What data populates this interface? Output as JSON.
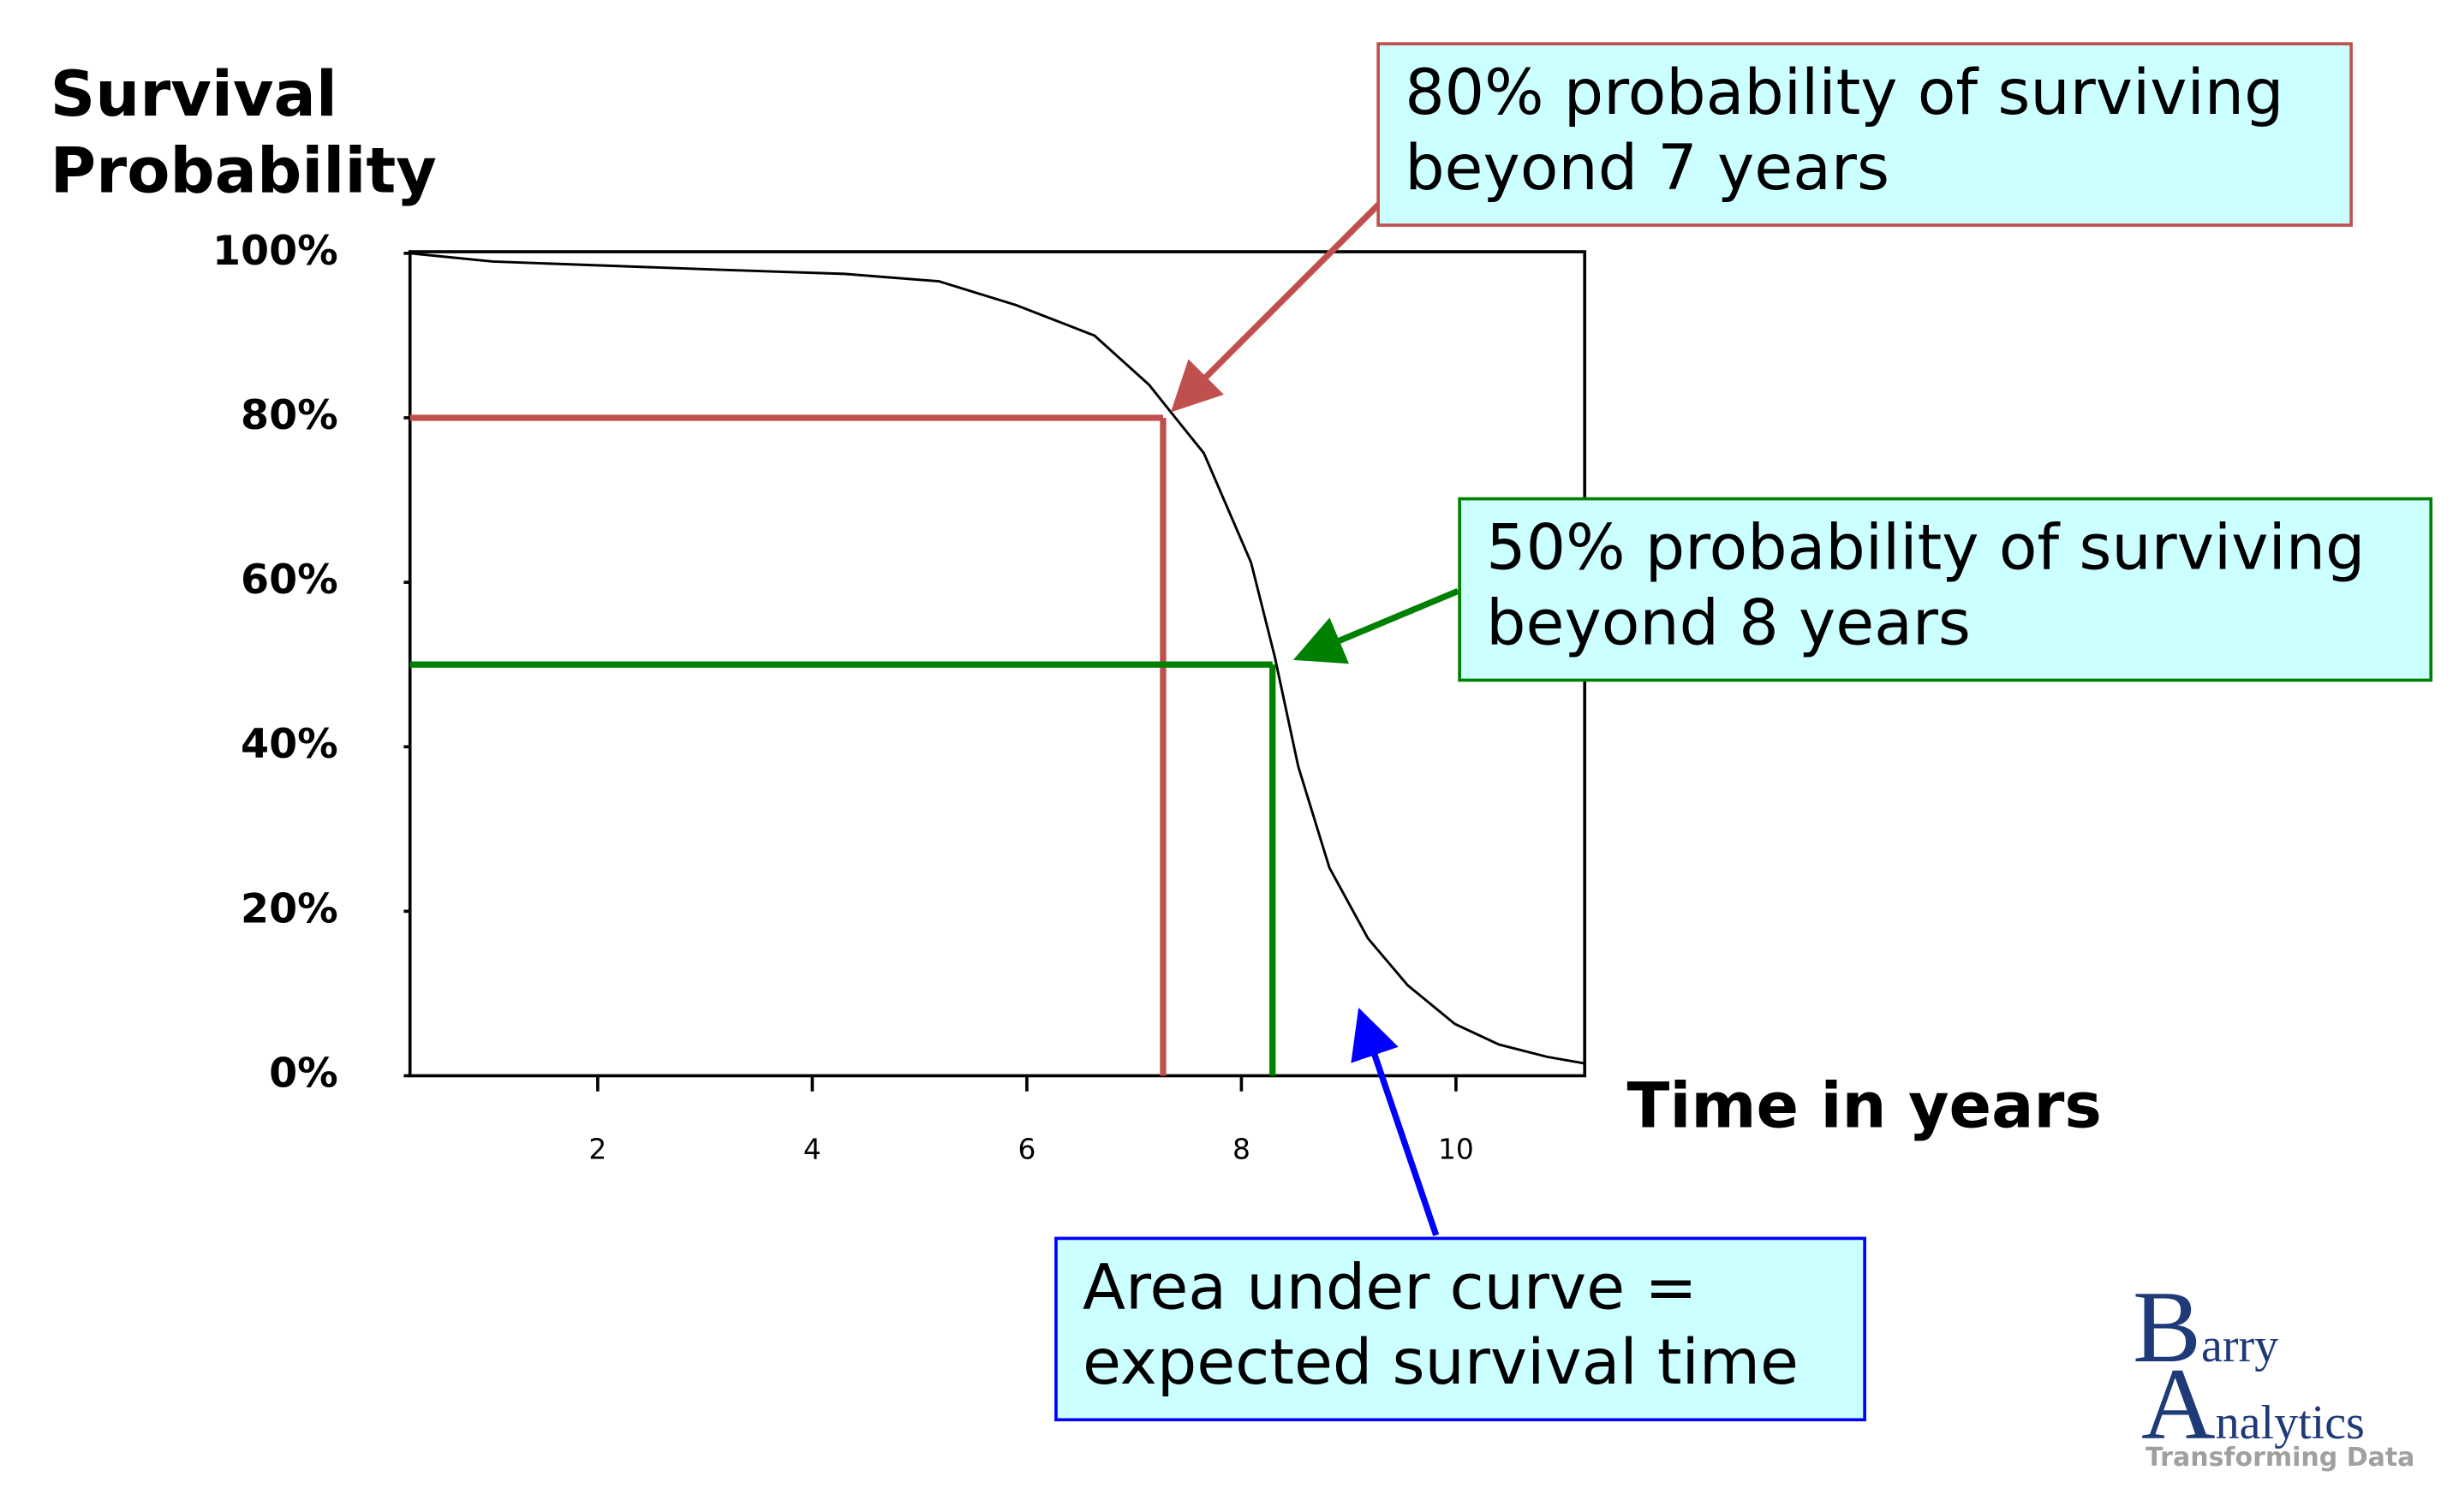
{
  "chart_data": {
    "type": "line",
    "y_label": [
      "Survival",
      "Probability"
    ],
    "x_label": "Time in years",
    "x": [
      0.25,
      1.02,
      3.14,
      4.3,
      5.18,
      5.9,
      6.63,
      7.14,
      7.36,
      7.65,
      8.09,
      8.31,
      8.53,
      8.82,
      9.18,
      9.55,
      9.99,
      10.4,
      10.85,
      11.2
    ],
    "series": [
      {
        "color": "#000000",
        "values": [
          100,
          99,
          98,
          97.5,
          96.6,
          93.7,
          90,
          84,
          80.4,
          75.7,
          62.4,
          51,
          37.6,
          25.3,
          16.7,
          11,
          6.3,
          3.8,
          2.3,
          1.5
        ]
      }
    ],
    "xlim": [
      0.25,
      11.2
    ],
    "xticks": [
      2,
      4,
      6,
      8,
      10
    ],
    "ylim": [
      0,
      100
    ],
    "yticks": [
      {
        "value": 0,
        "label": "0%"
      },
      {
        "value": 20,
        "label": "20%"
      },
      {
        "value": 40,
        "label": "40%"
      },
      {
        "value": 60,
        "label": "60%"
      },
      {
        "value": 80,
        "label": "80%"
      },
      {
        "value": 100,
        "label": "100%"
      }
    ],
    "reference_lines": [
      {
        "x": 7.27,
        "y": 80,
        "color": "#c0504d"
      },
      {
        "x": 8.29,
        "y": 50,
        "color": "#008000"
      }
    ],
    "annotations": [
      {
        "lines": [
          "80% probability of surviving",
          "beyond 7 years"
        ],
        "color": "#c0504d"
      },
      {
        "lines": [
          "50% probability of surviving",
          "beyond 8 years"
        ],
        "color": "#008000"
      },
      {
        "lines": [
          "Area under curve =",
          "expected survival time"
        ],
        "color": "#0000ff"
      }
    ]
  },
  "logo": {
    "name1": "Barry",
    "name2": "Analytics",
    "tagline": "Transforming Data"
  }
}
